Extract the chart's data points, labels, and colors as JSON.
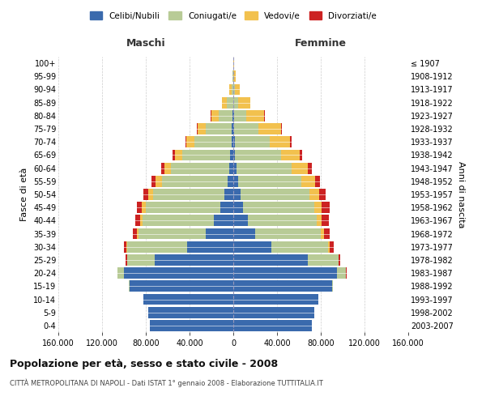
{
  "age_groups": [
    "0-4",
    "5-9",
    "10-14",
    "15-19",
    "20-24",
    "25-29",
    "30-34",
    "35-39",
    "40-44",
    "45-49",
    "50-54",
    "55-59",
    "60-64",
    "65-69",
    "70-74",
    "75-79",
    "80-84",
    "85-89",
    "90-94",
    "95-99",
    "100+"
  ],
  "birth_years": [
    "2003-2007",
    "1998-2002",
    "1993-1997",
    "1988-1992",
    "1983-1987",
    "1978-1982",
    "1973-1977",
    "1968-1972",
    "1963-1967",
    "1958-1962",
    "1953-1957",
    "1948-1952",
    "1943-1947",
    "1938-1942",
    "1933-1937",
    "1928-1932",
    "1923-1927",
    "1918-1922",
    "1913-1917",
    "1908-1912",
    "≤ 1907"
  ],
  "males": {
    "celibi": [
      76000,
      78000,
      82000,
      95000,
      100000,
      72000,
      42000,
      25000,
      18000,
      12000,
      8000,
      5500,
      4000,
      2800,
      1800,
      1200,
      700,
      350,
      120,
      40,
      10
    ],
    "coniugati": [
      0,
      0,
      0,
      800,
      6000,
      25000,
      55000,
      62000,
      65000,
      68000,
      65000,
      60000,
      53000,
      44000,
      34000,
      24000,
      13000,
      5500,
      1500,
      350,
      50
    ],
    "vedovi": [
      0,
      0,
      0,
      0,
      80,
      400,
      800,
      1500,
      2500,
      3500,
      4500,
      5500,
      6000,
      6500,
      7000,
      7500,
      6500,
      4500,
      1800,
      600,
      120
    ],
    "divorziati": [
      0,
      0,
      0,
      0,
      150,
      800,
      2000,
      3500,
      4500,
      5000,
      4500,
      4000,
      3000,
      2000,
      1200,
      600,
      280,
      100,
      30,
      10,
      3
    ]
  },
  "females": {
    "nubili": [
      72000,
      74000,
      78000,
      90000,
      95000,
      68000,
      35000,
      20000,
      13000,
      9000,
      6500,
      4500,
      3000,
      1800,
      1200,
      800,
      500,
      280,
      120,
      40,
      10
    ],
    "coniugate": [
      0,
      0,
      0,
      1200,
      8000,
      28000,
      52000,
      60000,
      63000,
      65000,
      63000,
      58000,
      50000,
      42000,
      32000,
      22000,
      11000,
      4000,
      1100,
      280,
      40
    ],
    "vedove": [
      0,
      0,
      0,
      0,
      150,
      600,
      1500,
      3000,
      5000,
      7000,
      9000,
      12000,
      15000,
      17000,
      19000,
      21000,
      17000,
      11000,
      4500,
      1800,
      500
    ],
    "divorziate": [
      0,
      0,
      0,
      0,
      250,
      1200,
      3000,
      5000,
      6500,
      7000,
      6000,
      5000,
      3500,
      2200,
      1200,
      550,
      220,
      70,
      20,
      8,
      2
    ]
  },
  "colors": {
    "celibi": "#3a6aad",
    "coniugati": "#b8cb96",
    "vedovi": "#f2c14e",
    "divorziati": "#cc2222"
  },
  "xlim": 160000,
  "xticks": [
    -160000,
    -120000,
    -80000,
    -40000,
    0,
    40000,
    80000,
    120000,
    160000
  ],
  "xtick_labels": [
    "160.000",
    "120.000",
    "80.000",
    "40.000",
    "0",
    "40.000",
    "80.000",
    "120.000",
    "160.000"
  ],
  "title": "Popolazione per età, sesso e stato civile - 2008",
  "subtitle": "CITTÀ METROPOLITANA DI NAPOLI - Dati ISTAT 1° gennaio 2008 - Elaborazione TUTTITALIA.IT",
  "ylabel_left": "Fasce di età",
  "ylabel_right": "Anni di nascita",
  "label_maschi": "Maschi",
  "label_femmine": "Femmine",
  "legend_labels": [
    "Celibi/Nubili",
    "Coniugati/e",
    "Vedovi/e",
    "Divorziati/e"
  ],
  "bg_color": "#ffffff",
  "grid_color": "#cccccc"
}
